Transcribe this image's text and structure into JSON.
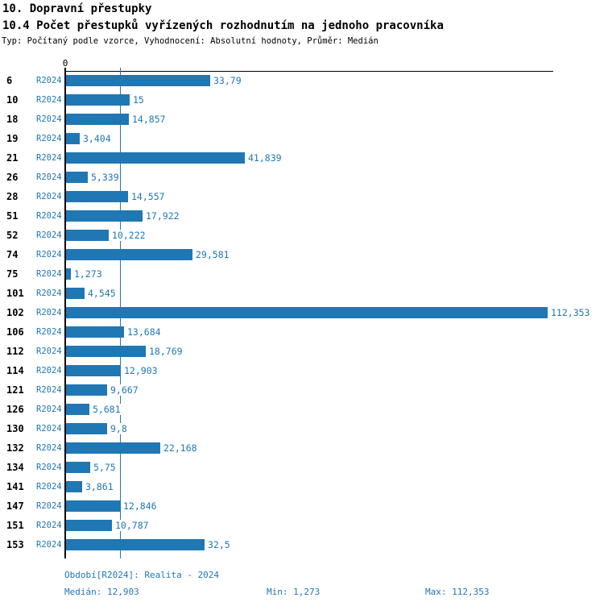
{
  "colors": {
    "accent": "#1f77b4",
    "axis": "#000000",
    "background": "#ffffff"
  },
  "header": {
    "title": "10. Dopravní přestupky",
    "subtitle": "10.4 Počet přestupků vyřízených rozhodnutím na jednoho pracovníka",
    "meta": "Typ: Počítaný podle vzorce, Vyhodnocení: Absolutní hodnoty, Průměr: Medián"
  },
  "chart_data": {
    "type": "bar",
    "orientation": "horizontal",
    "title": "10.4 Počet přestupků vyřízených rozhodnutím na jednoho pracovníka",
    "xlabel": "",
    "ylabel": "",
    "xlim": [
      0,
      112.353
    ],
    "grid": false,
    "legend_position": "none",
    "axis_zero_label": "0",
    "series_label": "R2024",
    "categories": [
      "6",
      "10",
      "18",
      "19",
      "21",
      "26",
      "28",
      "51",
      "52",
      "74",
      "75",
      "101",
      "102",
      "106",
      "112",
      "114",
      "121",
      "126",
      "130",
      "132",
      "134",
      "141",
      "147",
      "151",
      "153"
    ],
    "values": [
      33.79,
      15,
      14.857,
      3.404,
      41.839,
      5.339,
      14.557,
      17.922,
      10.222,
      29.581,
      1.273,
      4.545,
      112.353,
      13.684,
      18.769,
      12.903,
      9.667,
      5.681,
      9.8,
      22.168,
      5.75,
      3.861,
      12.846,
      10.787,
      32.5
    ],
    "value_labels": [
      "33,79",
      "15",
      "14,857",
      "3,404",
      "41,839",
      "5,339",
      "14,557",
      "17,922",
      "10,222",
      "29,581",
      "1,273",
      "4,545",
      "112,353",
      "13,684",
      "18,769",
      "12,903",
      "9,667",
      "5,681",
      "9,8",
      "22,168",
      "5,75",
      "3,861",
      "12,846",
      "10,787",
      "32,5"
    ],
    "median_value": 12.903,
    "min_value": 1.273,
    "max_value": 112.353,
    "bar_color": "#1f77b4",
    "median_line_color": "#1f77b4"
  },
  "footer": {
    "period": "Období[R2024]: Realita - 2024",
    "median": "Medián: 12,903",
    "min": "Min: 1,273",
    "max": "Max: 112,353"
  }
}
